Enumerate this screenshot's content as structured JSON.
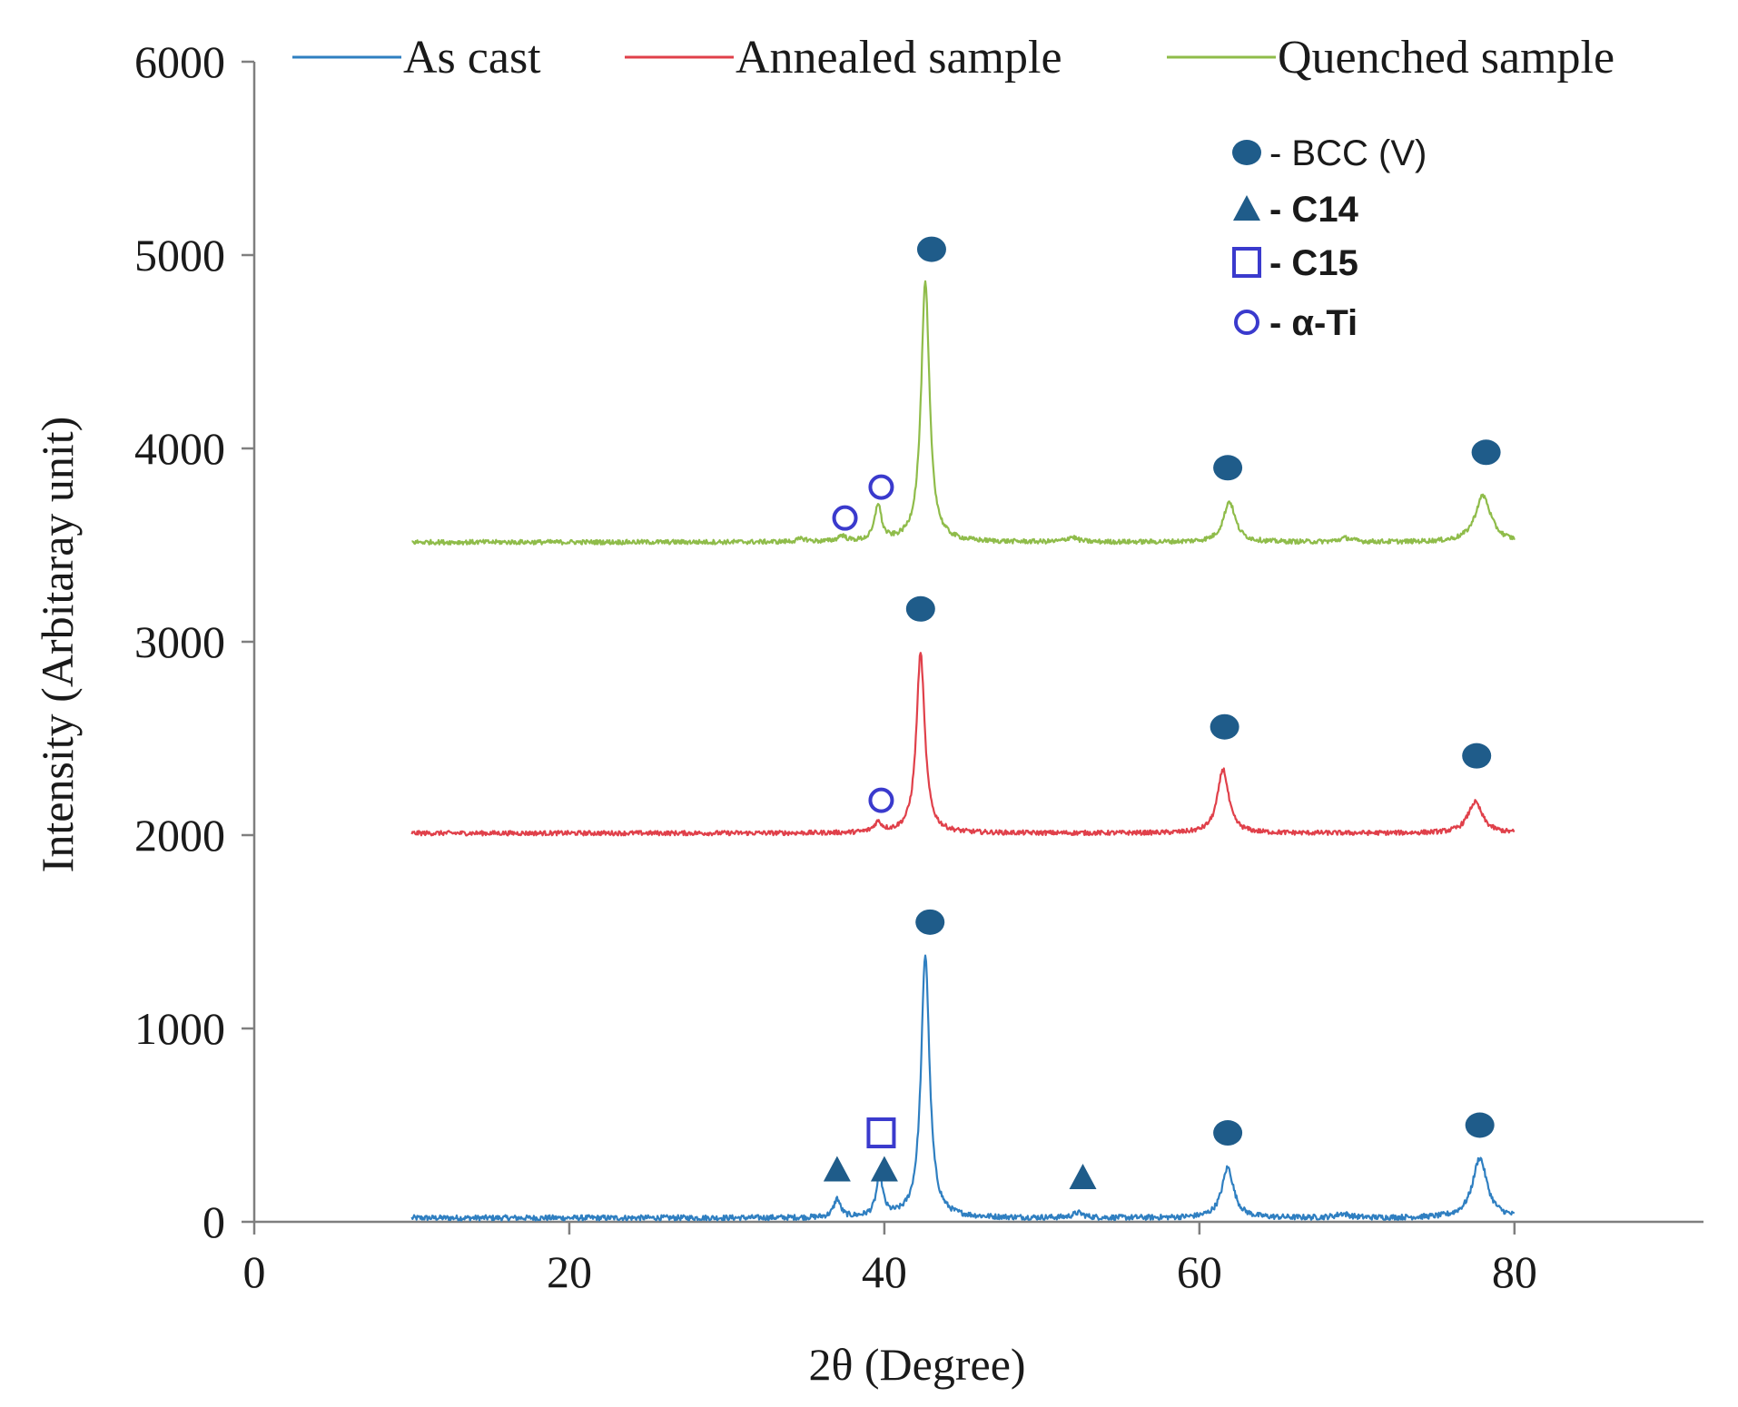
{
  "chart_data": {
    "type": "line",
    "title": "",
    "xlabel": "2θ (Degree)",
    "ylabel": "Intensity  (Arbitaray  unit)",
    "xlim": [
      0,
      92
    ],
    "ylim": [
      0,
      6000
    ],
    "xticks": [
      0,
      20,
      40,
      60,
      80
    ],
    "yticks": [
      0,
      1000,
      2000,
      3000,
      4000,
      5000,
      6000
    ],
    "grid": false,
    "legend_position": "top",
    "series": [
      {
        "name": "As cast",
        "color": "#2f7fc1",
        "baseline": 20,
        "x_range": [
          10,
          80
        ],
        "noise": 14,
        "peaks": [
          {
            "x": 37.0,
            "height": 95,
            "width": 0.25
          },
          {
            "x": 39.7,
            "height": 210,
            "width": 0.25
          },
          {
            "x": 42.6,
            "height": 1360,
            "width": 0.32
          },
          {
            "x": 52.3,
            "height": 25,
            "width": 0.4
          },
          {
            "x": 61.8,
            "height": 260,
            "width": 0.45
          },
          {
            "x": 69.1,
            "height": 20,
            "width": 0.5
          },
          {
            "x": 77.8,
            "height": 310,
            "width": 0.55
          }
        ]
      },
      {
        "name": "Annealed sample",
        "color": "#e0404a",
        "baseline": 2010,
        "x_range": [
          10,
          80
        ],
        "noise": 12,
        "peaks": [
          {
            "x": 39.6,
            "height": 50,
            "width": 0.3
          },
          {
            "x": 42.3,
            "height": 930,
            "width": 0.32
          },
          {
            "x": 61.5,
            "height": 330,
            "width": 0.42
          },
          {
            "x": 77.5,
            "height": 160,
            "width": 0.55
          }
        ]
      },
      {
        "name": "Quenched sample",
        "color": "#8fbc4a",
        "baseline": 3515,
        "x_range": [
          10,
          80
        ],
        "noise": 12,
        "peaks": [
          {
            "x": 34.8,
            "height": 15,
            "width": 0.4
          },
          {
            "x": 37.3,
            "height": 30,
            "width": 0.3
          },
          {
            "x": 39.6,
            "height": 190,
            "width": 0.25
          },
          {
            "x": 42.6,
            "height": 1340,
            "width": 0.32
          },
          {
            "x": 51.9,
            "height": 25,
            "width": 0.4
          },
          {
            "x": 61.9,
            "height": 210,
            "width": 0.45
          },
          {
            "x": 69.3,
            "height": 20,
            "width": 0.5
          },
          {
            "x": 78.0,
            "height": 240,
            "width": 0.6
          }
        ]
      }
    ],
    "phases": [
      {
        "symbol": "filled-circle",
        "label": "- BCC (V)",
        "bold": false
      },
      {
        "symbol": "filled-triangle",
        "label": "- C14",
        "bold": true
      },
      {
        "symbol": "open-square",
        "label": "- C15",
        "bold": true
      },
      {
        "symbol": "open-circle",
        "label": "- α-Ti",
        "bold": true
      }
    ],
    "markers": [
      {
        "symbol": "filled-circle",
        "x": 43.0,
        "y": 5030
      },
      {
        "symbol": "filled-circle",
        "x": 61.8,
        "y": 3900
      },
      {
        "symbol": "filled-circle",
        "x": 78.2,
        "y": 3980
      },
      {
        "symbol": "open-circle",
        "x": 37.5,
        "y": 3640
      },
      {
        "symbol": "open-circle",
        "x": 39.8,
        "y": 3800
      },
      {
        "symbol": "filled-circle",
        "x": 42.3,
        "y": 3170
      },
      {
        "symbol": "filled-circle",
        "x": 61.6,
        "y": 2560
      },
      {
        "symbol": "filled-circle",
        "x": 77.6,
        "y": 2410
      },
      {
        "symbol": "open-circle",
        "x": 39.8,
        "y": 2180
      },
      {
        "symbol": "filled-circle",
        "x": 42.9,
        "y": 1550
      },
      {
        "symbol": "filled-circle",
        "x": 61.8,
        "y": 460
      },
      {
        "symbol": "filled-circle",
        "x": 77.8,
        "y": 500
      },
      {
        "symbol": "open-square",
        "x": 39.8,
        "y": 460
      },
      {
        "symbol": "filled-triangle",
        "x": 37.0,
        "y": 270
      },
      {
        "symbol": "filled-triangle",
        "x": 40.0,
        "y": 270
      },
      {
        "symbol": "filled-triangle",
        "x": 52.6,
        "y": 230
      }
    ],
    "marker_colors": {
      "filled": "#1f5c8a",
      "open": "#3a3acd"
    }
  }
}
